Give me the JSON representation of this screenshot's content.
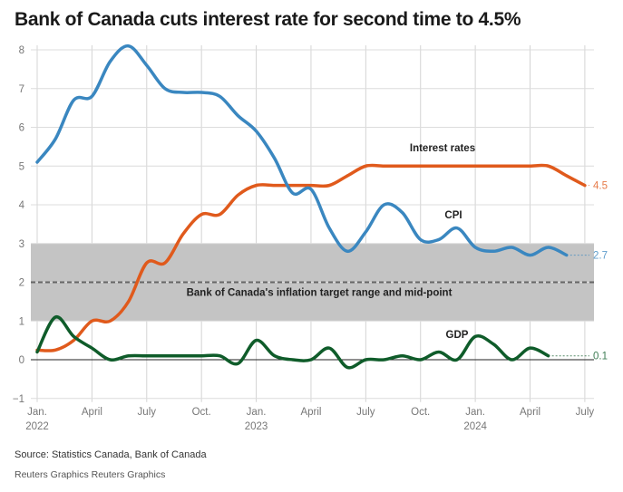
{
  "title": "Bank of Canada cuts interest rate for second time to 4.5%",
  "source": "Source: Statistics Canada, Bank of Canada",
  "credit": "Reuters Graphics Reuters Graphics",
  "chart_data": {
    "type": "line",
    "title": "Bank of Canada cuts interest rate for second time to 4.5%",
    "x": [
      "2022-01",
      "2022-02",
      "2022-03",
      "2022-04",
      "2022-05",
      "2022-06",
      "2022-07",
      "2022-08",
      "2022-09",
      "2022-10",
      "2022-11",
      "2022-12",
      "2023-01",
      "2023-02",
      "2023-03",
      "2023-04",
      "2023-05",
      "2023-06",
      "2023-07",
      "2023-08",
      "2023-09",
      "2023-10",
      "2023-11",
      "2023-12",
      "2024-01",
      "2024-02",
      "2024-03",
      "2024-04",
      "2024-05",
      "2024-06",
      "2024-07"
    ],
    "xlim": [
      "2022-01",
      "2024-07"
    ],
    "ylim": [
      -1,
      8
    ],
    "yticks": [
      -1,
      0,
      1,
      2,
      3,
      4,
      5,
      6,
      7,
      8
    ],
    "xticks": [
      {
        "line1": "Jan.",
        "line2": "2022"
      },
      {
        "line1": "April",
        "line2": ""
      },
      {
        "line1": "July",
        "line2": ""
      },
      {
        "line1": "Oct.",
        "line2": ""
      },
      {
        "line1": "Jan.",
        "line2": "2023"
      },
      {
        "line1": "April",
        "line2": ""
      },
      {
        "line1": "July",
        "line2": ""
      },
      {
        "line1": "Oct.",
        "line2": ""
      },
      {
        "line1": "Jan.",
        "line2": "2024"
      },
      {
        "line1": "April",
        "line2": ""
      },
      {
        "line1": "July",
        "line2": ""
      }
    ],
    "grid": true,
    "target_band": {
      "low": 1,
      "high": 3,
      "mid": 2,
      "label": "Bank of Canada's inflation target range and mid-point",
      "color": "#c4c4c4"
    },
    "series": [
      {
        "name": "Interest rates",
        "color": "#e05a1c",
        "end_label": "4.5",
        "values": [
          0.25,
          0.25,
          0.5,
          1.0,
          1.0,
          1.5,
          2.5,
          2.5,
          3.25,
          3.75,
          3.75,
          4.25,
          4.5,
          4.5,
          4.5,
          4.5,
          4.5,
          4.75,
          5.0,
          5.0,
          5.0,
          5.0,
          5.0,
          5.0,
          5.0,
          5.0,
          5.0,
          5.0,
          5.0,
          4.75,
          4.5
        ]
      },
      {
        "name": "CPI",
        "color": "#3a87c0",
        "end_label": "2.7",
        "values": [
          5.1,
          5.7,
          6.7,
          6.8,
          7.7,
          8.1,
          7.6,
          7.0,
          6.9,
          6.9,
          6.8,
          6.3,
          5.9,
          5.2,
          4.3,
          4.4,
          3.4,
          2.8,
          3.3,
          4.0,
          3.8,
          3.1,
          3.1,
          3.4,
          2.9,
          2.8,
          2.9,
          2.7,
          2.9,
          2.7,
          null
        ]
      },
      {
        "name": "GDP",
        "color": "#0f5c2a",
        "end_label": "0.1",
        "values": [
          0.2,
          1.1,
          0.6,
          0.3,
          0.0,
          0.1,
          0.1,
          0.1,
          0.1,
          0.1,
          0.1,
          -0.1,
          0.5,
          0.1,
          0.0,
          0.0,
          0.3,
          -0.2,
          0.0,
          0.0,
          0.1,
          0.0,
          0.2,
          0.0,
          0.6,
          0.4,
          0.0,
          0.3,
          0.1,
          null,
          null
        ]
      }
    ]
  }
}
